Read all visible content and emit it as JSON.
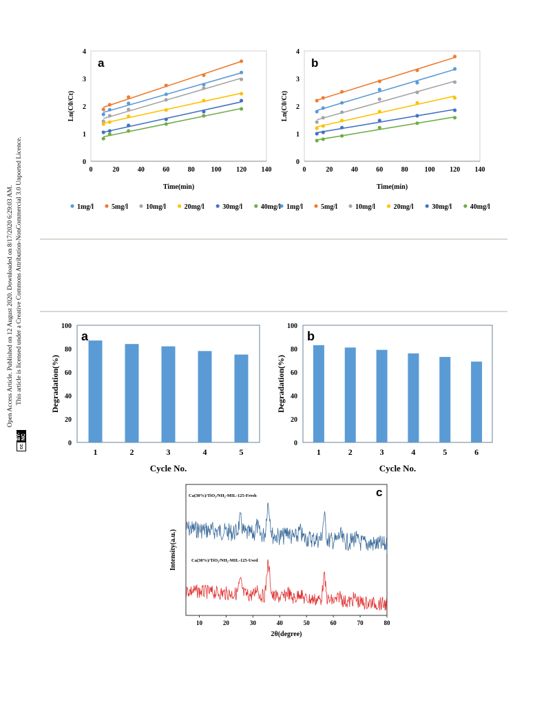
{
  "sidebar": {
    "line1": "Open Access Article. Published on 12 August 2020. Downloaded on 8/17/2020 6:29:03 AM.",
    "line2": "This article is licensed under a Creative Commons Attribution-NonCommercial 3.0 Unported Licence.",
    "badge_cc": "cc",
    "badge_by": "BY-NC"
  },
  "chart_data": [
    {
      "id": "kinetics_a",
      "type": "scatter",
      "panel_label": "a",
      "xlabel": "Time(min)",
      "ylabel": "Ln(C0/Ct)",
      "xlim": [
        0,
        140
      ],
      "ylim": [
        0,
        4
      ],
      "xticks": [
        0,
        20,
        40,
        60,
        80,
        100,
        120,
        140
      ],
      "yticks": [
        0,
        1,
        2,
        3,
        4
      ],
      "grid": false,
      "legend_position": "bottom",
      "x": [
        10,
        15,
        30,
        60,
        90,
        120
      ],
      "series": [
        {
          "name": "1mg/l",
          "color": "#5b9bd5",
          "values": [
            1.7,
            1.87,
            2.1,
            2.43,
            2.78,
            3.22
          ]
        },
        {
          "name": "5mg/l",
          "color": "#ed7d31",
          "values": [
            1.88,
            2.05,
            2.33,
            2.75,
            3.12,
            3.63
          ]
        },
        {
          "name": "10mg/l",
          "color": "#a5a5a5",
          "values": [
            1.45,
            1.65,
            1.88,
            2.23,
            2.65,
            2.97
          ]
        },
        {
          "name": "20mg/l",
          "color": "#ffc000",
          "values": [
            1.35,
            1.42,
            1.63,
            1.86,
            2.2,
            2.45
          ]
        },
        {
          "name": "30mg/l",
          "color": "#4472c4",
          "values": [
            1.05,
            1.1,
            1.3,
            1.52,
            1.8,
            2.2
          ]
        },
        {
          "name": "40mg/l",
          "color": "#70ad47",
          "values": [
            0.82,
            0.98,
            1.1,
            1.35,
            1.65,
            1.9
          ]
        }
      ]
    },
    {
      "id": "kinetics_b",
      "type": "scatter",
      "panel_label": "b",
      "xlabel": "Time(min)",
      "ylabel": "Ln(C0/Ct)",
      "xlim": [
        0,
        140
      ],
      "ylim": [
        0,
        4
      ],
      "xticks": [
        0,
        20,
        40,
        60,
        80,
        100,
        120,
        140
      ],
      "yticks": [
        0,
        1,
        2,
        3,
        4
      ],
      "grid": false,
      "legend_position": "bottom",
      "x": [
        10,
        15,
        30,
        60,
        90,
        120
      ],
      "series": [
        {
          "name": "1mg/l",
          "color": "#5b9bd5",
          "values": [
            1.8,
            1.93,
            2.12,
            2.6,
            2.85,
            3.35
          ]
        },
        {
          "name": "5mg/l",
          "color": "#ed7d31",
          "values": [
            2.2,
            2.3,
            2.52,
            2.9,
            3.3,
            3.8
          ]
        },
        {
          "name": "10mg/l",
          "color": "#a5a5a5",
          "values": [
            1.42,
            1.58,
            1.78,
            2.25,
            2.5,
            2.87
          ]
        },
        {
          "name": "20mg/l",
          "color": "#ffc000",
          "values": [
            1.2,
            1.28,
            1.48,
            1.8,
            2.12,
            2.3
          ]
        },
        {
          "name": "30mg/l",
          "color": "#4472c4",
          "values": [
            1.0,
            1.05,
            1.22,
            1.48,
            1.65,
            1.85
          ]
        },
        {
          "name": "40mg/l",
          "color": "#70ad47",
          "values": [
            0.75,
            0.8,
            0.92,
            1.22,
            1.38,
            1.58
          ]
        }
      ]
    },
    {
      "id": "cycles_a",
      "type": "bar",
      "panel_label": "a",
      "xlabel": "Cycle No.",
      "ylabel": "Degradation(%)",
      "ylim": [
        0,
        100
      ],
      "yticks": [
        0,
        20,
        40,
        60,
        80,
        100
      ],
      "bar_color": "#5b9bd5",
      "categories": [
        "1",
        "2",
        "3",
        "4",
        "5"
      ],
      "values": [
        87,
        84,
        82,
        78,
        75
      ]
    },
    {
      "id": "cycles_b",
      "type": "bar",
      "panel_label": "b",
      "xlabel": "Cycle No.",
      "ylabel": "Degradation(%)",
      "ylim": [
        0,
        100
      ],
      "yticks": [
        0,
        20,
        40,
        60,
        80,
        100
      ],
      "bar_color": "#5b9bd5",
      "categories": [
        "1",
        "2",
        "3",
        "4",
        "5",
        "6"
      ],
      "values": [
        83,
        81,
        79,
        76,
        73,
        69
      ]
    },
    {
      "id": "xrd_c",
      "type": "line",
      "panel_label": "c",
      "xlabel": "2θ(degree)",
      "ylabel": "Intensity(a.u.)",
      "xlim": [
        5,
        80
      ],
      "xticks": [
        10,
        20,
        30,
        40,
        50,
        60,
        70,
        80
      ],
      "series": [
        {
          "name": "Ca(30%)/TiO₂/NH₂-MIL-125-Fresh",
          "color": "#3a6a9a"
        },
        {
          "name": "Ca(30%)/TiO₂/NH₂-MIL-125-Used",
          "color": "#e03030"
        }
      ]
    }
  ]
}
